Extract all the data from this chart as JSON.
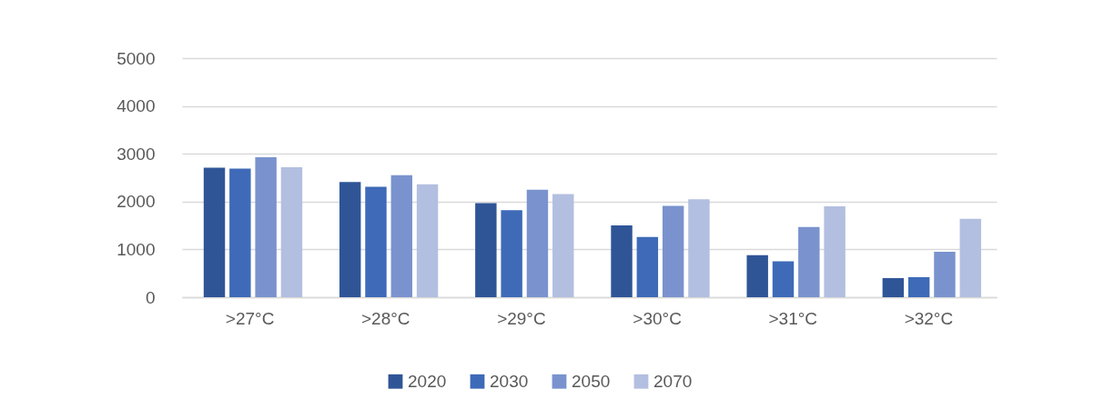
{
  "chart_data": {
    "type": "bar",
    "categories": [
      ">27°C",
      ">28°C",
      ">29°C",
      ">30°C",
      ">31°C",
      ">32°C"
    ],
    "series": [
      {
        "name": "2020",
        "color": "#2f5597",
        "values": [
          2710,
          2410,
          1970,
          1500,
          880,
          400
        ]
      },
      {
        "name": "2030",
        "color": "#3e6ab8",
        "values": [
          2690,
          2310,
          1820,
          1260,
          750,
          420
        ]
      },
      {
        "name": "2050",
        "color": "#7a93ce",
        "values": [
          2930,
          2550,
          2250,
          1910,
          1470,
          950
        ]
      },
      {
        "name": "2070",
        "color": "#b3bfe0",
        "values": [
          2720,
          2360,
          2160,
          2050,
          1900,
          1640
        ]
      }
    ],
    "ylim": [
      0,
      5000
    ],
    "yticks": [
      0,
      1000,
      2000,
      3000,
      4000,
      5000
    ],
    "grid": "y",
    "legend": "bottom"
  }
}
